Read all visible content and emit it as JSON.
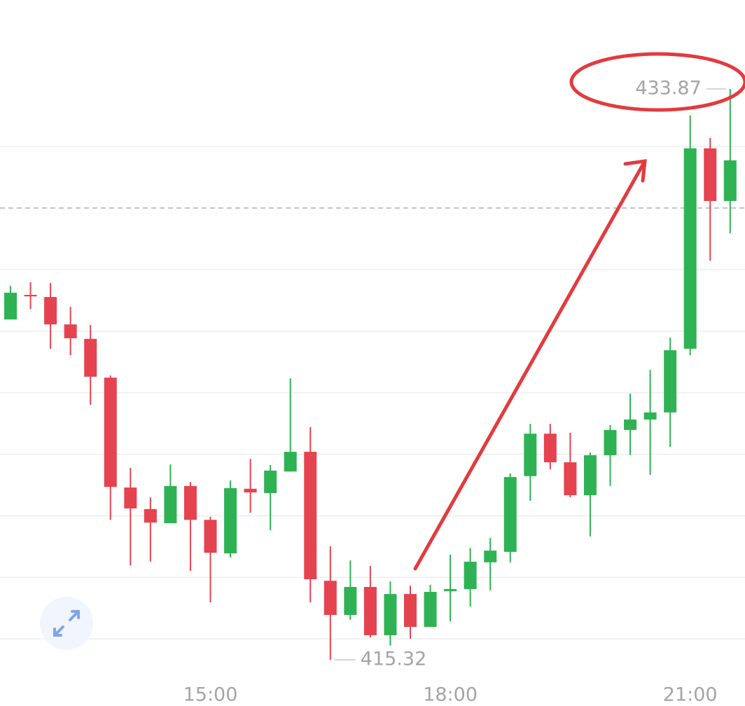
{
  "chart_data": {
    "type": "candlestick",
    "categories": [
      null,
      null,
      null,
      null,
      null,
      null,
      null,
      null,
      null,
      null,
      "15:00",
      null,
      null,
      null,
      null,
      null,
      null,
      null,
      null,
      null,
      null,
      null,
      "18:00",
      null,
      null,
      null,
      null,
      null,
      null,
      null,
      null,
      null,
      null,
      null,
      "21:00",
      null,
      null
    ],
    "open": [
      426.38,
      427.18,
      427.11,
      426.22,
      425.75,
      424.49,
      420.92,
      420.22,
      419.76,
      420.97,
      419.87,
      418.78,
      420.88,
      420.74,
      421.44,
      422.08,
      417.89,
      416.78,
      417.69,
      416.12,
      417.46,
      416.39,
      417.55,
      417.62,
      418.49,
      418.83,
      421.29,
      422.67,
      421.74,
      420.67,
      421.97,
      422.79,
      423.13,
      423.36,
      425.43,
      431.94,
      430.23
    ],
    "high": [
      427.47,
      427.59,
      427.57,
      426.79,
      426.2,
      424.56,
      421.56,
      420.6,
      421.67,
      421.1,
      419.97,
      421.15,
      421.85,
      421.65,
      424.47,
      422.88,
      419.01,
      418.55,
      418.37,
      417.87,
      417.73,
      417.76,
      418.74,
      418.96,
      419.28,
      421.38,
      422.99,
      422.99,
      422.7,
      422.06,
      422.95,
      423.97,
      424.74,
      425.79,
      433.01,
      432.28,
      433.87
    ],
    "low": [
      426.38,
      426.72,
      425.43,
      425.22,
      423.61,
      419.87,
      418.39,
      418.51,
      419.76,
      418.21,
      417.19,
      418.65,
      420.1,
      419.53,
      421.44,
      417.19,
      415.32,
      416.62,
      416.05,
      415.78,
      416.01,
      416.39,
      416.57,
      417.05,
      417.58,
      418.49,
      420.49,
      421.51,
      420.6,
      419.33,
      420.97,
      421.97,
      421.33,
      422.24,
      425.22,
      428.29,
      429.18
    ],
    "close": [
      427.25,
      427.13,
      426.22,
      425.77,
      424.52,
      420.94,
      420.24,
      419.78,
      420.97,
      419.87,
      418.8,
      420.9,
      420.76,
      421.47,
      422.08,
      417.94,
      416.78,
      417.69,
      416.12,
      417.46,
      416.39,
      417.53,
      417.62,
      418.51,
      418.87,
      421.26,
      422.67,
      421.74,
      420.67,
      421.97,
      422.79,
      423.13,
      423.36,
      425.38,
      431.94,
      430.23,
      431.55
    ],
    "up_color": "#2fb254",
    "down_color": "#e4434f",
    "ylim": [
      414.8,
      436.76
    ],
    "yticks": [
      416,
      418,
      420,
      422,
      424,
      426,
      428,
      432
    ],
    "grid": true,
    "price_line": 430
  }
}
